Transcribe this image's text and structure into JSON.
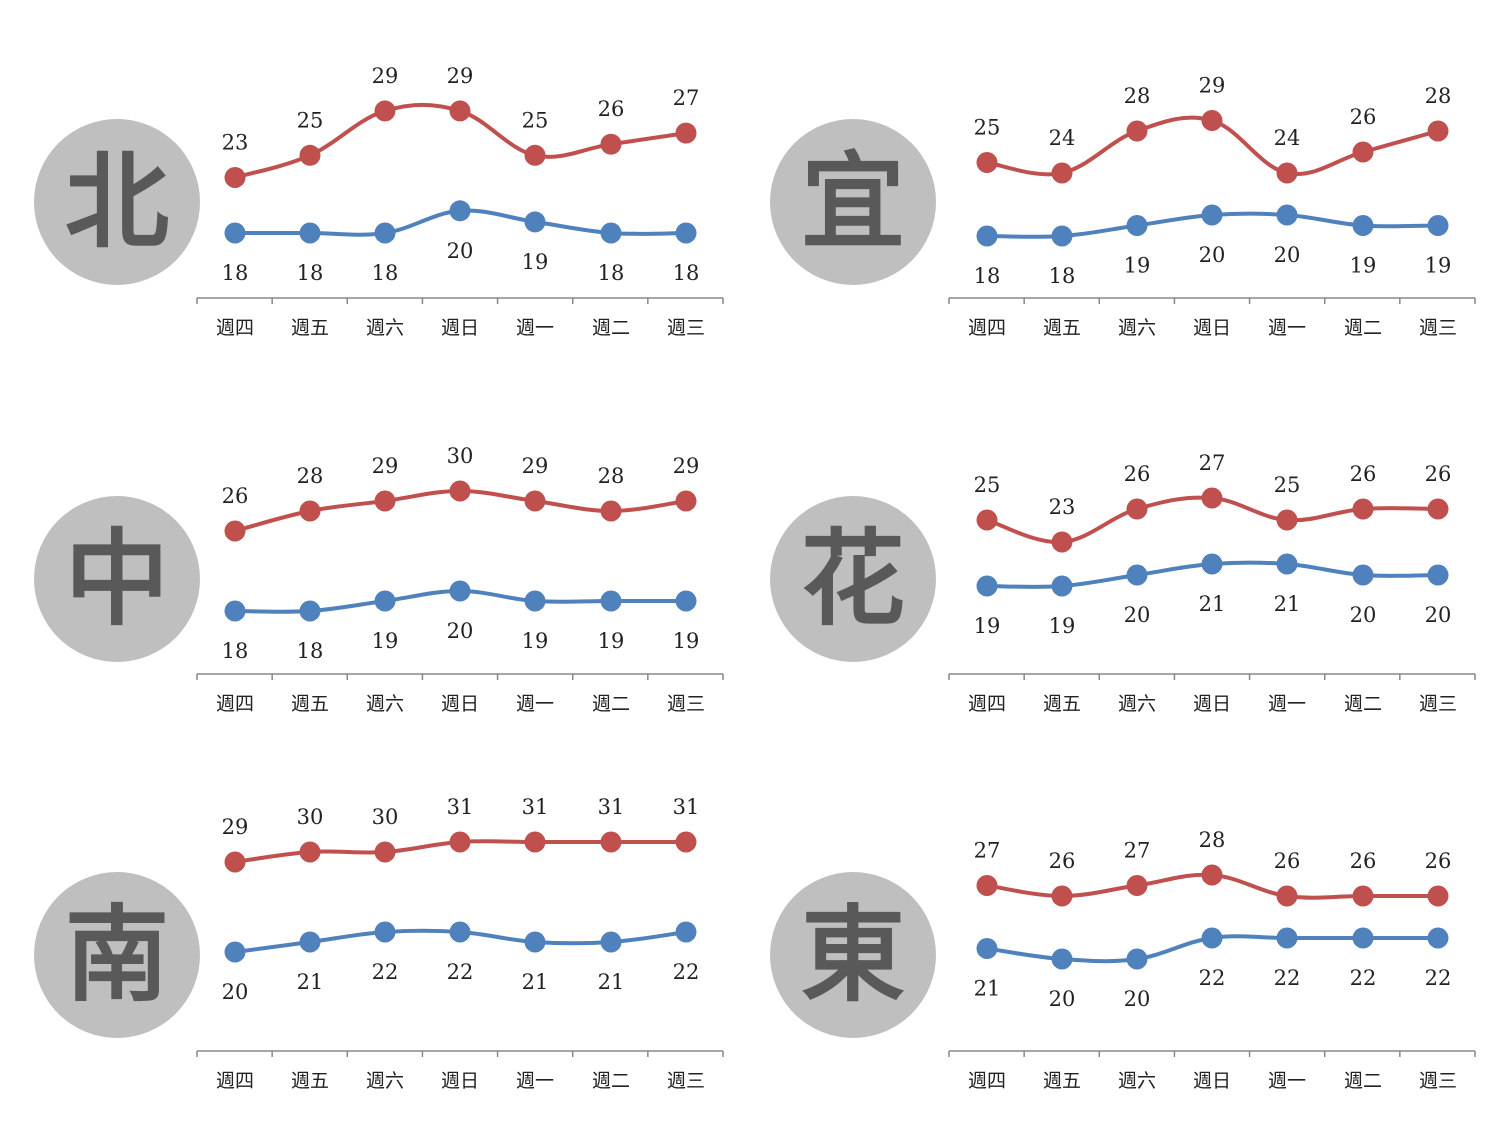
{
  "colors": {
    "high": "#c0504d",
    "low": "#4f81bd",
    "badge_bg": "#bfbfbf",
    "badge_text": "#595959",
    "axis": "#888888"
  },
  "chart_data": [
    {
      "type": "line",
      "region": "北",
      "categories": [
        "週四",
        "週五",
        "週六",
        "週日",
        "週一",
        "週二",
        "週三"
      ],
      "series": [
        {
          "values": [
            23,
            25,
            29,
            29,
            25,
            26,
            27
          ]
        },
        {
          "values": [
            18,
            18,
            18,
            20,
            19,
            18,
            18
          ]
        }
      ]
    },
    {
      "type": "line",
      "region": "宜",
      "categories": [
        "週四",
        "週五",
        "週六",
        "週日",
        "週一",
        "週二",
        "週三"
      ],
      "series": [
        {
          "values": [
            25,
            24,
            28,
            29,
            24,
            26,
            28
          ]
        },
        {
          "values": [
            18,
            18,
            19,
            20,
            20,
            19,
            19
          ]
        }
      ]
    },
    {
      "type": "line",
      "region": "中",
      "categories": [
        "週四",
        "週五",
        "週六",
        "週日",
        "週一",
        "週二",
        "週三"
      ],
      "series": [
        {
          "values": [
            26,
            28,
            29,
            30,
            29,
            28,
            29
          ]
        },
        {
          "values": [
            18,
            18,
            19,
            20,
            19,
            19,
            19
          ]
        }
      ]
    },
    {
      "type": "line",
      "region": "花",
      "categories": [
        "週四",
        "週五",
        "週六",
        "週日",
        "週一",
        "週二",
        "週三"
      ],
      "series": [
        {
          "values": [
            25,
            23,
            26,
            27,
            25,
            26,
            26
          ]
        },
        {
          "values": [
            19,
            19,
            20,
            21,
            21,
            20,
            20
          ]
        }
      ]
    },
    {
      "type": "line",
      "region": "南",
      "categories": [
        "週四",
        "週五",
        "週六",
        "週日",
        "週一",
        "週二",
        "週三"
      ],
      "series": [
        {
          "values": [
            29,
            30,
            30,
            31,
            31,
            31,
            31
          ]
        },
        {
          "values": [
            20,
            21,
            22,
            22,
            21,
            21,
            22
          ]
        }
      ]
    },
    {
      "type": "line",
      "region": "東",
      "categories": [
        "週四",
        "週五",
        "週六",
        "週日",
        "週一",
        "週二",
        "週三"
      ],
      "series": [
        {
          "values": [
            27,
            26,
            27,
            28,
            26,
            26,
            26
          ]
        },
        {
          "values": [
            21,
            20,
            20,
            22,
            22,
            22,
            22
          ]
        }
      ]
    }
  ]
}
